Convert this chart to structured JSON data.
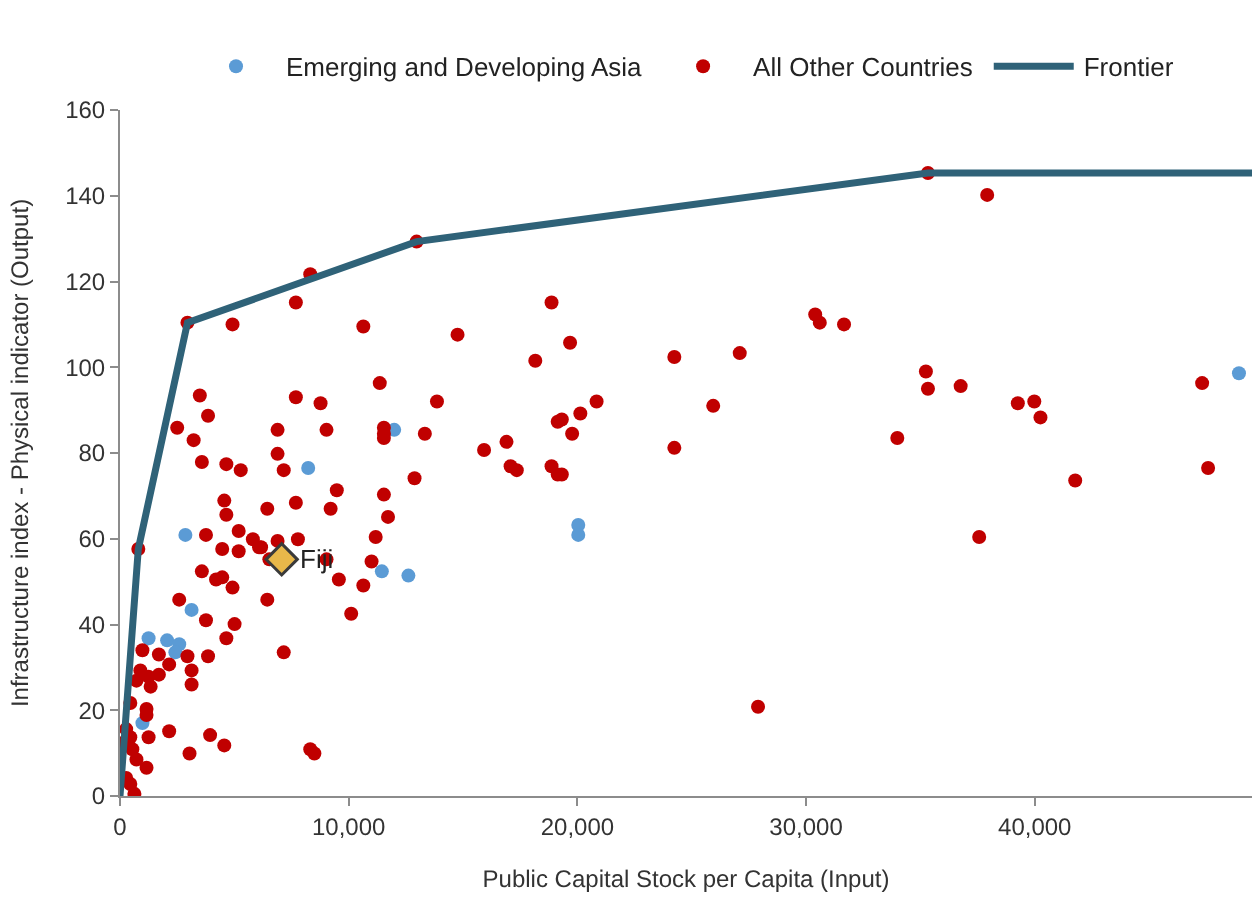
{
  "chart_data": {
    "type": "scatter",
    "xlabel": "Public Capital Stock per Capita (Input)",
    "ylabel": "Infrastructure index - Physical indicator (Output)",
    "xlim": [
      0,
      49500
    ],
    "xticks": [
      0,
      {
        "value": 10000,
        "label": "10,000"
      },
      {
        "value": 20000,
        "label": "20,000"
      },
      {
        "value": 30000,
        "label": "30,000"
      },
      {
        "value": 40000,
        "label": "40,000"
      }
    ],
    "ylim": [
      0,
      160
    ],
    "yticks": [
      0,
      20,
      40,
      60,
      80,
      100,
      120,
      140,
      160
    ],
    "legend": "top",
    "marker": "circle",
    "series": [
      {
        "name": "Emerging and Developing Asia",
        "color": "#5b9bd5",
        "x": [
          48930,
          20040,
          20040,
          11990,
          8230,
          11450,
          12610,
          2860,
          3130,
          1250,
          2060,
          2590,
          2420,
          980
        ],
        "values": [
          98.6,
          63.2,
          60.9,
          85.4,
          76.5,
          52.4,
          51.4,
          60.9,
          43.4,
          36.8,
          36.3,
          35.4,
          33.5,
          17
        ]
      },
      {
        "name": "All Other Countries",
        "color": "#c00000",
        "x": [
          19680,
          24240,
          27100,
          30400,
          30600,
          31660,
          35330,
          37920,
          35240,
          35330,
          36760,
          39260,
          39980,
          40250,
          47320,
          47580,
          41770,
          37570,
          33990,
          27900,
          24240,
          25940,
          20840,
          20130,
          19770,
          19320,
          19320,
          8320,
          7690,
          12970,
          10640,
          14760,
          18870,
          18160,
          11360,
          7690,
          8770,
          13860,
          6890,
          9030,
          11540,
          11540,
          11540,
          13330,
          15920,
          16900,
          17080,
          17350,
          18870,
          19140,
          19140,
          6890,
          7160,
          9480,
          6440,
          7690,
          9210,
          11540,
          12880,
          11720,
          11180,
          6080,
          6890,
          7780,
          6530,
          11000,
          9570,
          10640,
          6440,
          10110,
          7160,
          8320,
          8500,
          9030,
          2950,
          4920,
          3490,
          3850,
          2500,
          3220,
          3580,
          4650,
          5280,
          4560,
          4650,
          3760,
          5190,
          4470,
          5190,
          5810,
          6170,
          800,
          3580,
          4200,
          4470,
          4920,
          3760,
          2590,
          5010,
          4650,
          3850,
          2950,
          3130,
          3130,
          2150,
          1700,
          980,
          890,
          1250,
          1700,
          720,
          1340,
          450,
          1160,
          1160,
          1250,
          450,
          90,
          540,
          720,
          1160,
          270,
          450,
          630,
          2150,
          3040,
          3940,
          4560,
          270
        ],
        "values": [
          105.7,
          102.4,
          103.3,
          112.3,
          110.4,
          110,
          145.3,
          140.2,
          99,
          95,
          95.6,
          91.6,
          92,
          88.3,
          96.3,
          76.5,
          73.6,
          60.4,
          83.5,
          20.8,
          81.2,
          91,
          92,
          89.2,
          84.5,
          87.8,
          75,
          121.7,
          115.1,
          129.3,
          109.5,
          107.6,
          115.1,
          101.5,
          96.3,
          93,
          91.6,
          92,
          85.4,
          85.4,
          85.9,
          84.5,
          83.5,
          84.5,
          80.7,
          82.6,
          76.9,
          76,
          76.9,
          75,
          87.3,
          79.8,
          76,
          71.3,
          67,
          68.4,
          67,
          70.3,
          74.1,
          65.1,
          60.4,
          58,
          59.5,
          59.9,
          55.2,
          54.7,
          50.5,
          49.1,
          45.8,
          42.5,
          33.5,
          10.9,
          9.9,
          55.2,
          110.4,
          110,
          93.4,
          88.7,
          85.9,
          83,
          77.9,
          77.4,
          76,
          68.9,
          65.6,
          60.9,
          61.8,
          57.6,
          57.1,
          59.9,
          58,
          57.6,
          52.4,
          50.5,
          51,
          48.6,
          41,
          45.8,
          40.1,
          36.8,
          32.6,
          32.6,
          29.3,
          26,
          30.7,
          33,
          34,
          29.3,
          27.8,
          28.3,
          26.9,
          25.5,
          21.7,
          20.3,
          18.9,
          13.7,
          13.7,
          12.3,
          10.9,
          8.5,
          6.6,
          4.2,
          2.8,
          0.5,
          15.1,
          9.9,
          14.2,
          11.8,
          15.6
        ]
      },
      {
        "name": "Frontier",
        "type": "line",
        "marker": "none",
        "color": "#2f6278",
        "x": [
          0,
          800,
          2950,
          12970,
          35330,
          49500
        ],
        "values": [
          0,
          57.6,
          110.4,
          129.3,
          145.3,
          145.3
        ]
      },
      {
        "color": "#e8b84a",
        "marker": "diamond",
        "x": [
          7070
        ],
        "values": [
          55.2
        ]
      }
    ],
    "annotations": [
      {
        "text": "Fiji",
        "x": 7070,
        "y": 55.2
      }
    ]
  }
}
